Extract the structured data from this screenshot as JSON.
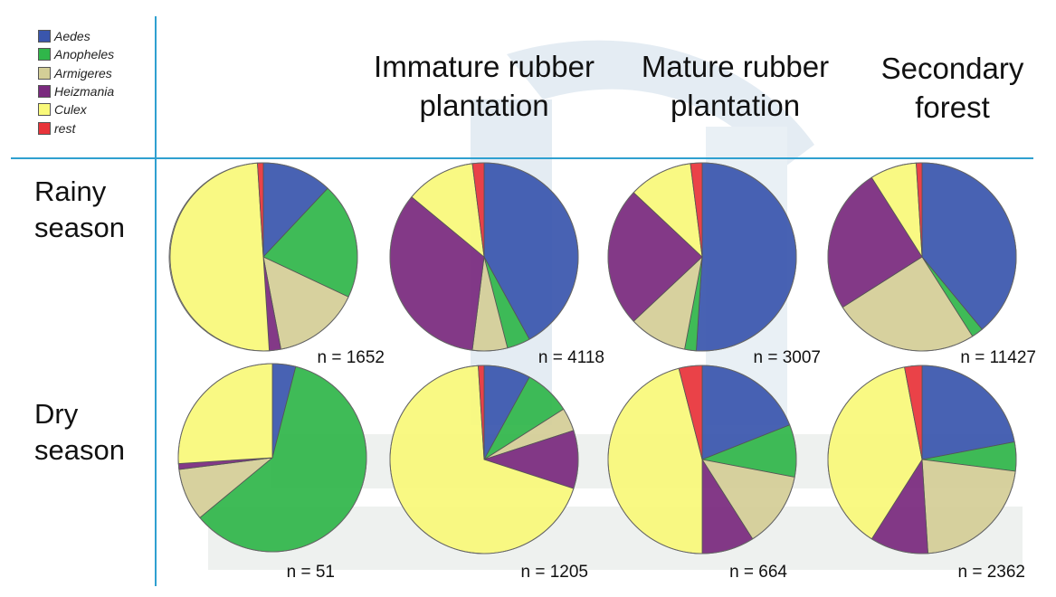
{
  "colors": {
    "Aedes": "#3a56ad",
    "Anopheles": "#30b64a",
    "Armigeres": "#d4ce97",
    "Heizmania": "#7a2a7e",
    "Culex": "#f9f97a",
    "rest": "#e8343a",
    "grid_line": "#2fa0d0",
    "watermark": "#d7e2ec"
  },
  "chart_data": {
    "type": "pie",
    "title": "",
    "legend": {
      "placement": "top-left",
      "entries": [
        "Aedes",
        "Anopheles",
        "Armigeres",
        "Heizmania",
        "Culex",
        "rest"
      ]
    },
    "columns": [
      "Immature rubber plantation",
      "Mature rubber plantation",
      "Secondary forest"
    ],
    "columns_lines": [
      [
        "Immature rubber",
        "plantation"
      ],
      [
        "Mature rubber",
        "plantation"
      ],
      [
        "Secondary",
        "forest"
      ]
    ],
    "rows": [
      "Rainy season",
      "Dry season"
    ],
    "rows_lines": [
      [
        "Rainy",
        "season"
      ],
      [
        "Dry",
        "season"
      ]
    ],
    "categories": [
      "Aedes",
      "Anopheles",
      "Armigeres",
      "Heizmania",
      "Culex",
      "rest"
    ],
    "pies": [
      {
        "row": "Rainy season",
        "column": "",
        "n_label": "n = 1652",
        "values": [
          12,
          20,
          15,
          2,
          50,
          1
        ]
      },
      {
        "row": "Rainy season",
        "column": "Immature rubber plantation",
        "n_label": "n = 4118",
        "values": [
          42,
          4,
          6,
          34,
          12,
          2
        ]
      },
      {
        "row": "Rainy season",
        "column": "Mature rubber plantation",
        "n_label": "n = 3007",
        "values": [
          51,
          2,
          10,
          24,
          11,
          2
        ]
      },
      {
        "row": "Rainy season",
        "column": "Secondary forest",
        "n_label": "n = 11427",
        "values": [
          39,
          2,
          25,
          25,
          8,
          1
        ]
      },
      {
        "row": "Dry season",
        "column": "",
        "n_label": "n = 51",
        "values": [
          4,
          60,
          9,
          1,
          26,
          0
        ]
      },
      {
        "row": "Dry season",
        "column": "Immature rubber plantation",
        "n_label": "n = 1205",
        "values": [
          8,
          8,
          4,
          10,
          69,
          1
        ]
      },
      {
        "row": "Dry season",
        "column": "Mature rubber plantation",
        "n_label": "n = 664",
        "values": [
          19,
          9,
          13,
          9,
          46,
          4
        ]
      },
      {
        "row": "Dry season",
        "column": "Secondary forest",
        "n_label": "n = 2362",
        "values": [
          22,
          5,
          22,
          10,
          38,
          3
        ]
      }
    ]
  }
}
